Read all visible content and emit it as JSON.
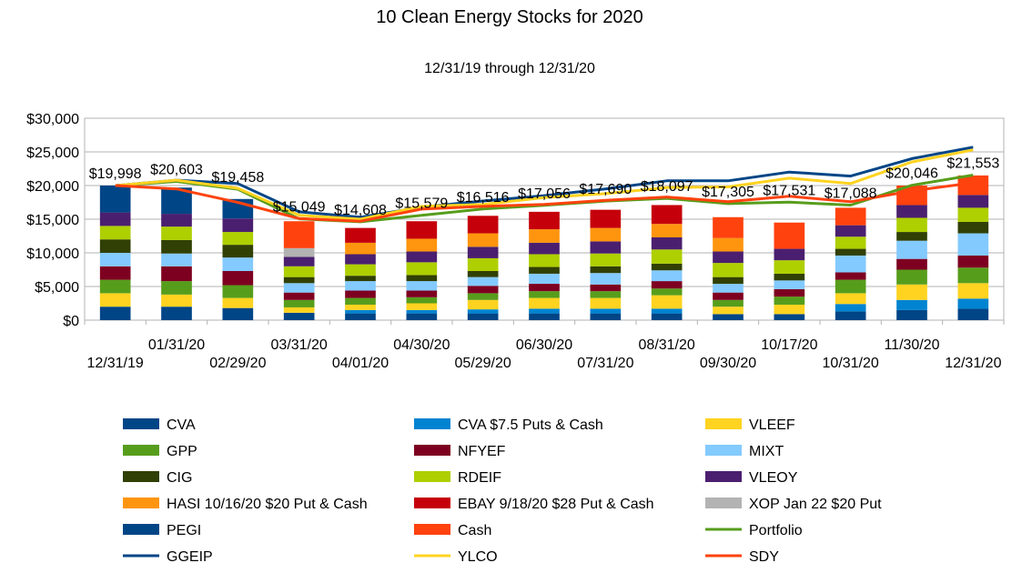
{
  "chart_data": {
    "type": "bar",
    "title": "10 Clean Energy Stocks for 2020",
    "subtitle": "12/31/19 through 12/31/20",
    "xlabel": "",
    "ylabel": "",
    "ylim": [
      0,
      30000
    ],
    "yticks": [
      0,
      5000,
      10000,
      15000,
      20000,
      25000,
      30000
    ],
    "ytick_labels": [
      "$0",
      "$5,000",
      "$10,000",
      "$15,000",
      "$20,000",
      "$25,000",
      "$30,000"
    ],
    "grid": true,
    "legend_position": "bottom",
    "categories": [
      "12/31/19",
      "01/31/20",
      "02/29/20",
      "03/31/20",
      "04/01/20",
      "04/30/20",
      "05/29/20",
      "06/30/20",
      "07/31/20",
      "08/31/20",
      "09/30/20",
      "10/17/20",
      "10/31/20",
      "11/30/20",
      "12/31/20"
    ],
    "data_labels": [
      "$19,998",
      "$20,603",
      "$19,458",
      "$15,049",
      "$14,608",
      "$15,579",
      "$16,516",
      "$17,056",
      "$17,690",
      "$18,097",
      "$17,305",
      "$17,531",
      "$17,088",
      "$20,046",
      "$21,553"
    ],
    "series": [
      {
        "name": "CVA",
        "kind": "bar",
        "color": "#004586",
        "values": [
          2000,
          2000,
          1800,
          1100,
          1000,
          1000,
          1000,
          1000,
          1000,
          1000,
          900,
          900,
          1300,
          1500,
          1700
        ]
      },
      {
        "name": "CVA $7.5 Puts & Cash",
        "kind": "bar",
        "color": "#0084d1",
        "values": [
          0,
          0,
          0,
          0,
          500,
          500,
          600,
          700,
          700,
          700,
          0,
          0,
          1100,
          1500,
          1500
        ]
      },
      {
        "name": "VLEEF",
        "kind": "bar",
        "color": "#ffd320",
        "values": [
          2000,
          1800,
          1500,
          800,
          800,
          1000,
          1400,
          1600,
          1600,
          2000,
          1100,
          1400,
          1600,
          2300,
          2300
        ]
      },
      {
        "name": "GPP",
        "kind": "bar",
        "color": "#579d1c",
        "values": [
          2000,
          2000,
          1900,
          1100,
          1000,
          900,
          1000,
          1000,
          1000,
          1000,
          1000,
          1200,
          2000,
          2200,
          2300
        ]
      },
      {
        "name": "NFYEF",
        "kind": "bar",
        "color": "#7e0021",
        "values": [
          2000,
          2200,
          2100,
          1100,
          1100,
          1000,
          1100,
          1100,
          1000,
          1100,
          1100,
          1100,
          1100,
          1600,
          1800
        ]
      },
      {
        "name": "MIXT",
        "kind": "bar",
        "color": "#83caff",
        "values": [
          2000,
          1900,
          2000,
          1400,
          1400,
          1400,
          1300,
          1500,
          1700,
          1600,
          1300,
          1300,
          2500,
          2700,
          3300
        ]
      },
      {
        "name": "CIG",
        "kind": "bar",
        "color": "#314004",
        "values": [
          2000,
          2000,
          1900,
          900,
          800,
          900,
          900,
          1000,
          1000,
          1000,
          1000,
          1000,
          1000,
          1300,
          1700
        ]
      },
      {
        "name": "RDEIF",
        "kind": "bar",
        "color": "#aecf00",
        "values": [
          2000,
          2000,
          1900,
          1600,
          1700,
          1900,
          1900,
          1900,
          1900,
          2100,
          2100,
          2000,
          1800,
          2100,
          2100
        ]
      },
      {
        "name": "VLEOY",
        "kind": "bar",
        "color": "#4b1f6f",
        "values": [
          2000,
          1900,
          2000,
          1400,
          1500,
          1600,
          1700,
          1700,
          1800,
          1800,
          1700,
          1700,
          1700,
          1900,
          1900
        ]
      },
      {
        "name": "HASI 10/16/20 $20 Put & Cash",
        "kind": "bar",
        "color": "#ff950e",
        "values": [
          0,
          0,
          0,
          0,
          1700,
          1900,
          2000,
          2000,
          2000,
          2000,
          2000,
          0,
          0,
          0,
          0
        ]
      },
      {
        "name": "EBAY 9/18/20 $28 Put & Cash",
        "kind": "bar",
        "color": "#c5000b",
        "values": [
          0,
          0,
          0,
          0,
          2200,
          2600,
          2600,
          2600,
          2700,
          2800,
          0,
          0,
          0,
          0,
          0
        ]
      },
      {
        "name": "XOP Jan 22 $20 Put",
        "kind": "bar",
        "color": "#b3b3b3",
        "values": [
          0,
          0,
          0,
          1300,
          0,
          0,
          0,
          0,
          0,
          0,
          0,
          0,
          0,
          0,
          0
        ]
      },
      {
        "name": "PEGI",
        "kind": "bar",
        "color": "#004586",
        "values": [
          4000,
          3900,
          2900,
          0,
          0,
          0,
          0,
          0,
          0,
          0,
          0,
          0,
          0,
          0,
          0
        ]
      },
      {
        "name": "Cash",
        "kind": "bar",
        "color": "#ff420e",
        "values": [
          0,
          0,
          0,
          4000,
          0,
          0,
          0,
          0,
          0,
          0,
          3100,
          3900,
          2600,
          2900,
          2900
        ]
      },
      {
        "name": "Portfolio",
        "kind": "line",
        "color": "#579d1c",
        "values": [
          19998,
          20603,
          19458,
          15049,
          14608,
          15579,
          16516,
          17056,
          17690,
          18097,
          17305,
          17531,
          17088,
          20046,
          21553
        ]
      },
      {
        "name": "GGEIP",
        "kind": "line",
        "color": "#004586",
        "values": [
          20000,
          20800,
          20300,
          16100,
          15300,
          16800,
          17700,
          18500,
          19500,
          20700,
          20700,
          22000,
          21400,
          24000,
          25700
        ]
      },
      {
        "name": "YLCO",
        "kind": "line",
        "color": "#ffd320",
        "values": [
          20000,
          20800,
          19600,
          15600,
          15000,
          16900,
          17200,
          18200,
          18800,
          19700,
          19800,
          21100,
          20300,
          23500,
          25300
        ]
      },
      {
        "name": "SDY",
        "kind": "line",
        "color": "#ff420e",
        "values": [
          20000,
          19500,
          17500,
          15100,
          14700,
          16500,
          16900,
          17200,
          17800,
          18300,
          17600,
          18400,
          17600,
          19200,
          20400
        ]
      }
    ]
  }
}
